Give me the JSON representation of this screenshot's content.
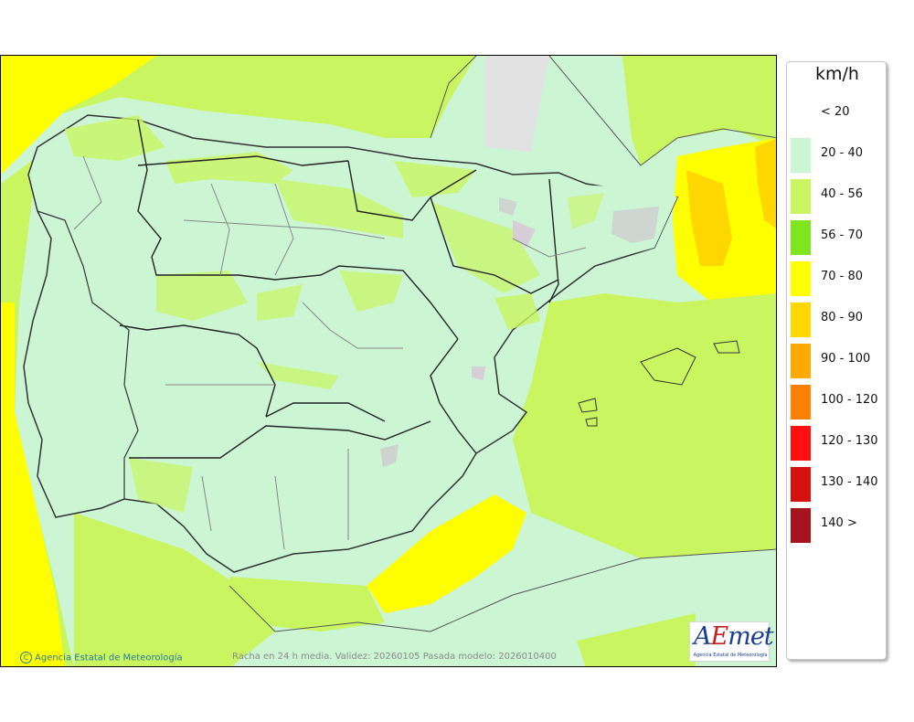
{
  "legend": {
    "unit": "km/h",
    "items": [
      {
        "label": "< 20",
        "color": "#ffffff"
      },
      {
        "label": "20 - 40",
        "color": "#ccf5d4"
      },
      {
        "label": "40 - 56",
        "color": "#c8f560"
      },
      {
        "label": "56 - 70",
        "color": "#7fe61e"
      },
      {
        "label": "70 - 80",
        "color": "#ffff00"
      },
      {
        "label": "80 - 90",
        "color": "#ffd700"
      },
      {
        "label": "90 - 100",
        "color": "#ffaa00"
      },
      {
        "label": "100 - 120",
        "color": "#ff7f00"
      },
      {
        "label": "120 - 130",
        "color": "#ff1010"
      },
      {
        "label": "130 - 140",
        "color": "#d71010"
      },
      {
        "label": "140 >",
        "color": "#a8141e"
      }
    ]
  },
  "map": {
    "caption": "Racha en 24 h media. Validez: 20260105 Pasada modelo: 2026010400",
    "credit": "Agencia Estatal de Meteorología",
    "copyright_symbol": "C",
    "logo": {
      "text_a": "A",
      "text_e": "E",
      "text_rest": "met",
      "subtitle": "Agencia Estatal de Meteorología"
    }
  }
}
